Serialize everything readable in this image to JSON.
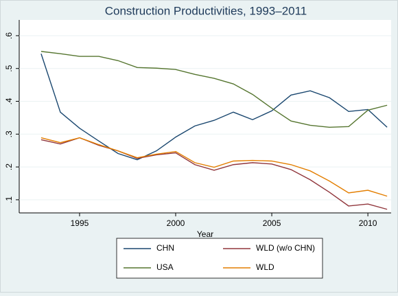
{
  "chart_data": {
    "type": "line",
    "title": "Construction Productivities, 1993–2011",
    "x_label": "Year",
    "x": [
      1993,
      1994,
      1995,
      1996,
      1997,
      1998,
      1999,
      2000,
      2001,
      2002,
      2003,
      2004,
      2005,
      2006,
      2007,
      2008,
      2009,
      2010,
      2011
    ],
    "series": [
      {
        "name": "CHN",
        "color": "#1a476f",
        "values": [
          0.545,
          0.367,
          0.318,
          0.279,
          0.241,
          0.222,
          0.249,
          0.291,
          0.325,
          0.342,
          0.367,
          0.344,
          0.371,
          0.419,
          0.432,
          0.411,
          0.369,
          0.375,
          0.321
        ]
      },
      {
        "name": "WLD (w/o CHN)",
        "color": "#90353b",
        "values": [
          0.283,
          0.27,
          0.289,
          0.266,
          0.249,
          0.226,
          0.237,
          0.243,
          0.207,
          0.19,
          0.207,
          0.213,
          0.209,
          0.192,
          0.161,
          0.123,
          0.081,
          0.087,
          0.071
        ]
      },
      {
        "name": "USA",
        "color": "#55752f",
        "values": [
          0.552,
          0.545,
          0.537,
          0.537,
          0.524,
          0.503,
          0.501,
          0.497,
          0.482,
          0.47,
          0.453,
          0.421,
          0.379,
          0.34,
          0.327,
          0.321,
          0.323,
          0.373,
          0.388
        ]
      },
      {
        "name": "WLD",
        "color": "#e37e00",
        "values": [
          0.289,
          0.274,
          0.289,
          0.268,
          0.249,
          0.228,
          0.239,
          0.247,
          0.213,
          0.199,
          0.218,
          0.22,
          0.218,
          0.207,
          0.188,
          0.157,
          0.121,
          0.129,
          0.111
        ]
      }
    ],
    "xlim": [
      1991.86,
      2011.21
    ],
    "xticks": [
      1995,
      2000,
      2005,
      2010
    ],
    "ylim": [
      0.06,
      0.648
    ],
    "yticks": [
      {
        "value": 0.1,
        "label": ".1"
      },
      {
        "value": 0.2,
        "label": ".2"
      },
      {
        "value": 0.3,
        "label": ".3"
      },
      {
        "value": 0.4,
        "label": ".4"
      },
      {
        "value": 0.5,
        "label": ".5"
      },
      {
        "value": 0.6,
        "label": ".6"
      }
    ],
    "grid": true
  }
}
